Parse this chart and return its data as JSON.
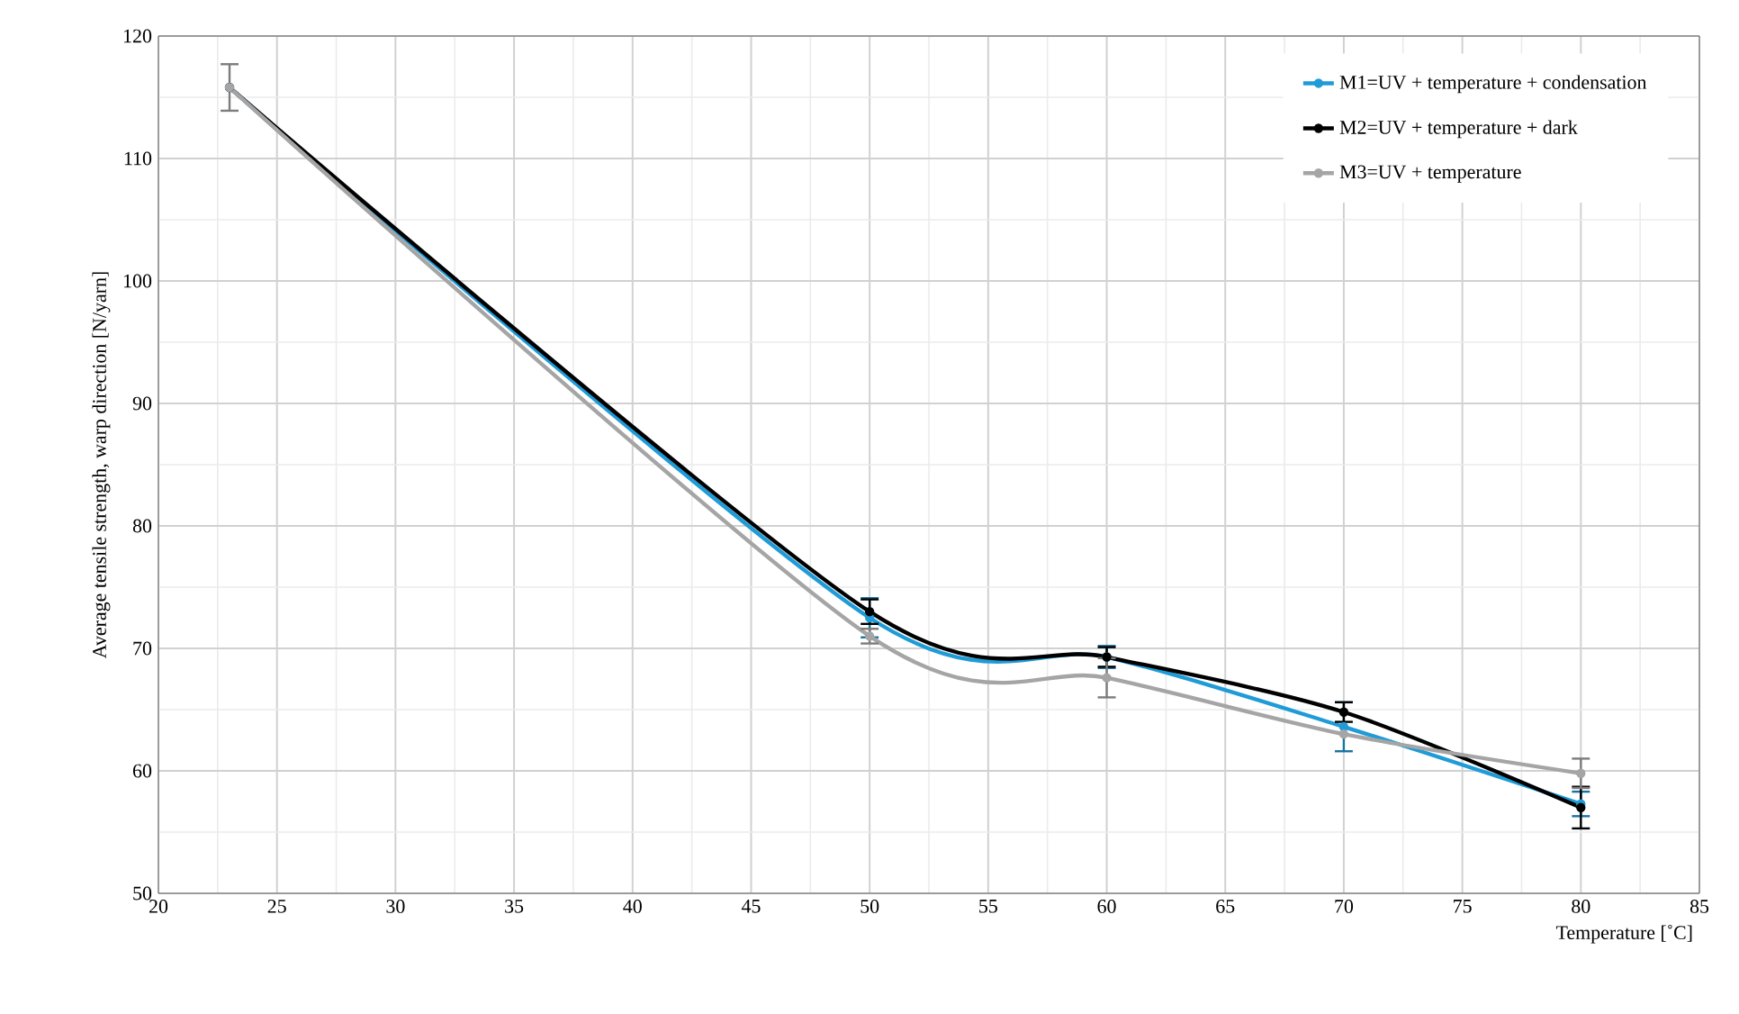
{
  "chart_data": {
    "type": "line",
    "xlabel": "Temperature  [˚C]",
    "ylabel": "Average tensile strength,  warp direction [N/yarn]",
    "x": [
      23,
      50,
      60,
      70,
      80
    ],
    "series": [
      {
        "name": "M1=UV + temperature + condensation",
        "color": "#1f9bd7",
        "values": [
          115.8,
          72.5,
          69.3,
          63.6,
          57.3
        ],
        "errors": [
          null,
          1.6,
          0.9,
          2.0,
          1.0
        ]
      },
      {
        "name": "M2=UV + temperature + dark",
        "color": "#000000",
        "values": [
          115.8,
          73.0,
          69.3,
          64.8,
          57.0
        ],
        "errors": [
          null,
          1.0,
          0.8,
          0.8,
          1.7
        ]
      },
      {
        "name": "M3=UV + temperature",
        "color": "#a5a5a5",
        "values": [
          115.8,
          71.0,
          67.6,
          63.0,
          59.8
        ],
        "errors": [
          1.9,
          0.6,
          1.6,
          null,
          1.2
        ]
      }
    ],
    "xlim": [
      20,
      85
    ],
    "xticks": [
      20,
      25,
      30,
      35,
      40,
      45,
      50,
      55,
      60,
      65,
      70,
      75,
      80,
      85
    ],
    "ylim": [
      50,
      120
    ],
    "yticks": [
      50,
      60,
      70,
      80,
      90,
      100,
      110,
      120
    ],
    "grid": true,
    "legend": "top right",
    "marker": "circle",
    "line_style": "solid"
  }
}
